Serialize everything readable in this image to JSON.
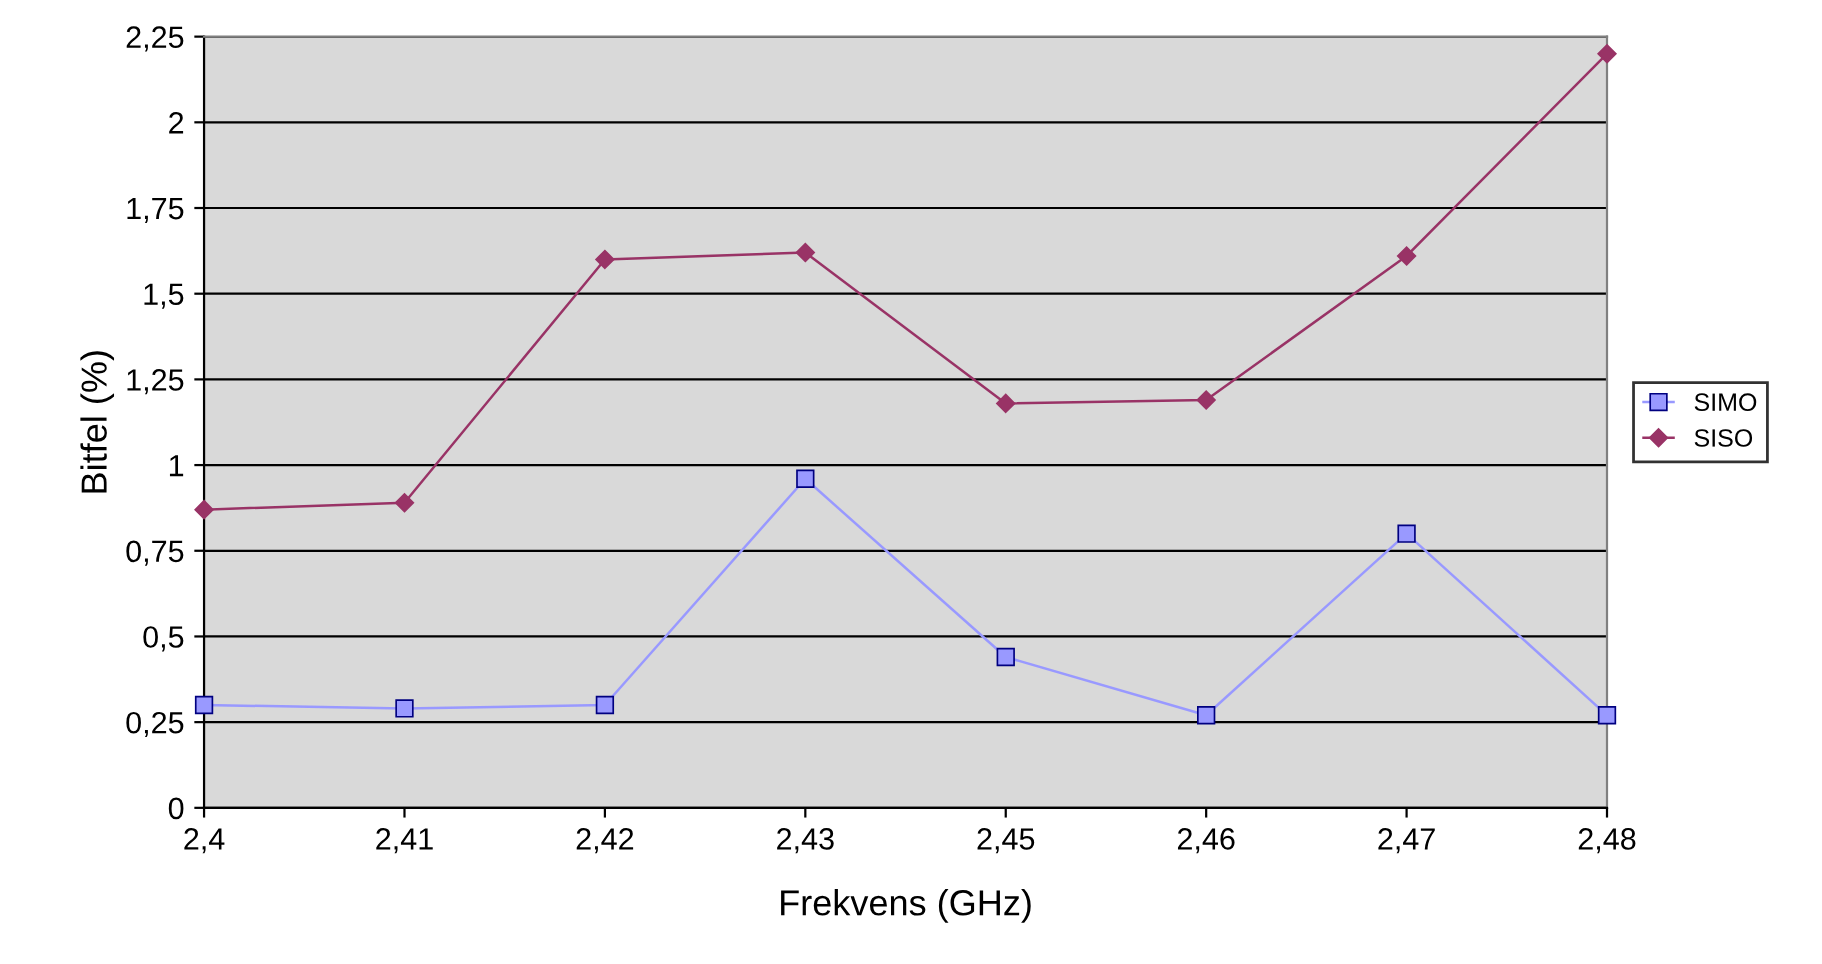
{
  "chart_data": {
    "type": "line",
    "xlabel": "Frekvens (GHz)",
    "ylabel": "Bitfel (%)",
    "categories": [
      "2,4",
      "2,41",
      "2,42",
      "2,43",
      "2,45",
      "2,46",
      "2,47",
      "2,48"
    ],
    "series": [
      {
        "name": "SIMO",
        "color": "#9999ff",
        "marker": "square",
        "values": [
          0.3,
          0.29,
          0.3,
          0.96,
          0.44,
          0.27,
          0.8,
          0.27
        ]
      },
      {
        "name": "SISO",
        "color": "#993366",
        "marker": "diamond",
        "values": [
          0.87,
          0.89,
          1.6,
          1.62,
          1.18,
          1.19,
          1.61,
          2.2
        ]
      }
    ],
    "ylim": [
      0,
      2.25
    ],
    "yticks": [
      0,
      {
        "value": 0.25,
        "label": "0,25"
      },
      {
        "value": 0.5,
        "label": "0,5"
      },
      {
        "value": 0.75,
        "label": "0,75"
      },
      1,
      {
        "value": 1.25,
        "label": "1,25"
      },
      {
        "value": 1.5,
        "label": "1,5"
      },
      {
        "value": 1.75,
        "label": "1,75"
      },
      2,
      {
        "value": 2.25,
        "label": "2,25"
      }
    ],
    "grid": "y",
    "legend": "right",
    "line_style": "solid"
  }
}
